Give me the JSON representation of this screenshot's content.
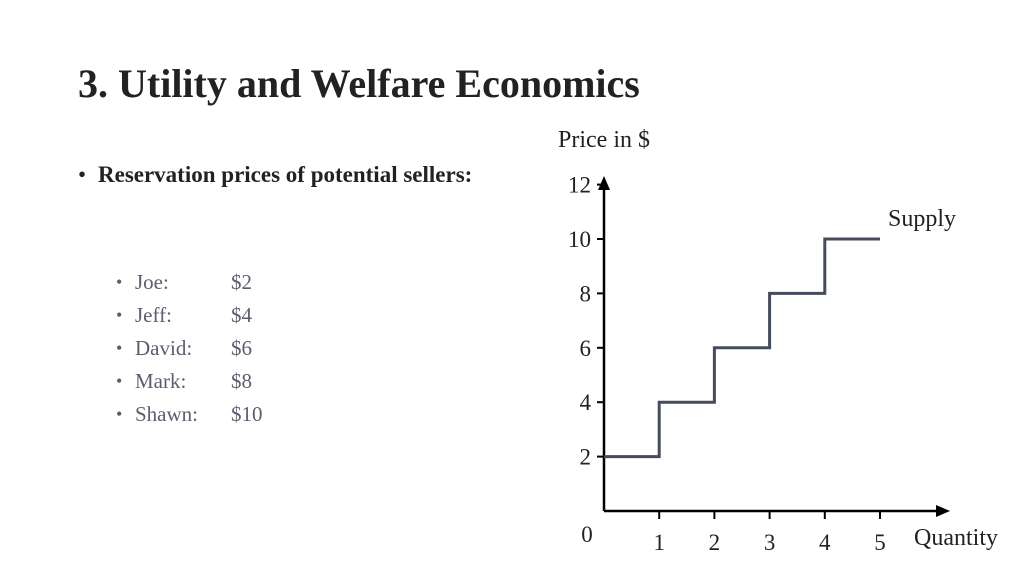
{
  "slide": {
    "title": "3. Utility and Welfare Economics",
    "bullet": "Reservation prices of potential sellers:",
    "bullet_symbol": "•",
    "sellers": [
      {
        "name": "Joe:",
        "price": "$2"
      },
      {
        "name": "Jeff:",
        "price": "$4"
      },
      {
        "name": "David:",
        "price": "$6"
      },
      {
        "name": "Mark:",
        "price": "$8"
      },
      {
        "name": "Shawn:",
        "price": "$10"
      }
    ]
  },
  "chart_data": {
    "type": "line",
    "title": "",
    "ylabel": "Price in $",
    "xlabel": "Quantity",
    "origin_label": "0",
    "x_ticks": [
      1,
      2,
      3,
      4,
      5
    ],
    "y_ticks": [
      2,
      4,
      6,
      8,
      10,
      12
    ],
    "xlim": [
      0,
      5
    ],
    "ylim": [
      0,
      12
    ],
    "grid": false,
    "series": [
      {
        "name": "Supply",
        "color": "#444c5e",
        "step": true,
        "points": [
          [
            0,
            2
          ],
          [
            1,
            2
          ],
          [
            1,
            4
          ],
          [
            2,
            4
          ],
          [
            2,
            6
          ],
          [
            3,
            6
          ],
          [
            3,
            8
          ],
          [
            4,
            8
          ],
          [
            4,
            10
          ],
          [
            5,
            10
          ]
        ]
      }
    ]
  }
}
